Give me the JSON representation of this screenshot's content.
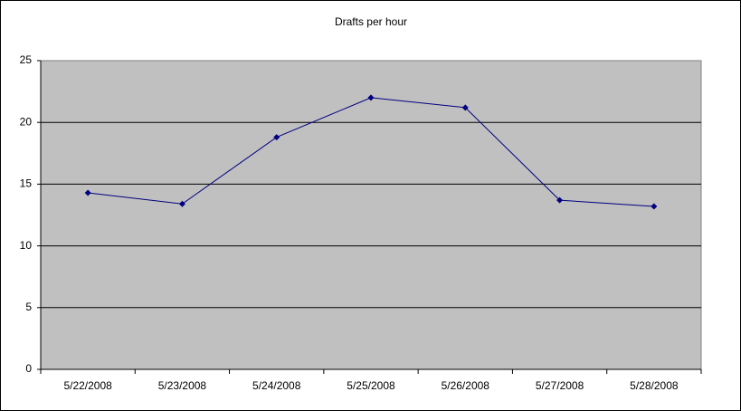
{
  "chart_data": {
    "type": "line",
    "title": "Drafts per hour",
    "categories": [
      "5/22/2008",
      "5/23/2008",
      "5/24/2008",
      "5/25/2008",
      "5/26/2008",
      "5/27/2008",
      "5/28/2008"
    ],
    "series": [
      {
        "color": "#000080",
        "values": [
          14.3,
          13.4,
          18.8,
          22.0,
          21.2,
          13.7,
          13.2
        ]
      }
    ],
    "ylim": [
      0,
      25
    ],
    "yticks": [
      0,
      5,
      10,
      15,
      20,
      25
    ],
    "grid": true
  }
}
